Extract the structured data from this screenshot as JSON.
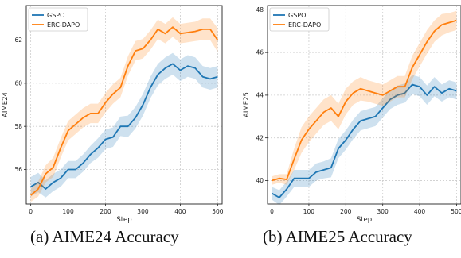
{
  "captions": [
    "(a) AIME24 Accuracy",
    "(b) AIME25 Accuracy"
  ],
  "colors": {
    "GSPO": "#1f77b4",
    "ERC-DAPO": "#ff7f0e",
    "grid": "#cccccc",
    "axis": "#222222"
  },
  "chart_data": [
    {
      "type": "line",
      "xlabel": "Step",
      "ylabel": "AIME24",
      "xlim": [
        -12,
        512
      ],
      "ylim": [
        54.4,
        63.6
      ],
      "xticks": [
        0,
        100,
        200,
        300,
        400,
        500
      ],
      "yticks": [
        56,
        58,
        60,
        62
      ],
      "grid": true,
      "legend": "top-left",
      "series": [
        {
          "name": "GSPO",
          "x": [
            0,
            20,
            40,
            60,
            80,
            100,
            120,
            140,
            160,
            180,
            200,
            220,
            240,
            260,
            280,
            300,
            320,
            340,
            360,
            380,
            400,
            420,
            440,
            460,
            480,
            500
          ],
          "values": [
            55.2,
            55.4,
            55.1,
            55.4,
            55.6,
            56.0,
            56.0,
            56.3,
            56.7,
            57.0,
            57.4,
            57.5,
            58.0,
            58.0,
            58.4,
            59.0,
            59.8,
            60.4,
            60.7,
            60.9,
            60.6,
            60.8,
            60.7,
            60.3,
            60.2,
            60.3
          ],
          "band": [
            0.45,
            0.45,
            0.4,
            0.4,
            0.4,
            0.4,
            0.4,
            0.4,
            0.4,
            0.45,
            0.45,
            0.45,
            0.45,
            0.5,
            0.5,
            0.5,
            0.5,
            0.5,
            0.5,
            0.5,
            0.5,
            0.5,
            0.5,
            0.5,
            0.5,
            0.5
          ]
        },
        {
          "name": "ERC-DAPO",
          "x": [
            0,
            20,
            40,
            60,
            80,
            100,
            120,
            140,
            160,
            180,
            200,
            220,
            240,
            260,
            280,
            300,
            320,
            340,
            360,
            380,
            400,
            420,
            440,
            460,
            480,
            500
          ],
          "values": [
            54.8,
            55.1,
            55.8,
            56.1,
            57.0,
            57.8,
            58.1,
            58.4,
            58.6,
            58.6,
            59.1,
            59.5,
            59.8,
            60.8,
            61.5,
            61.6,
            62.0,
            62.5,
            62.3,
            62.6,
            62.3,
            62.35,
            62.4,
            62.5,
            62.5,
            62.0
          ],
          "band": [
            0.3,
            0.35,
            0.4,
            0.45,
            0.45,
            0.45,
            0.45,
            0.45,
            0.45,
            0.45,
            0.45,
            0.45,
            0.45,
            0.45,
            0.45,
            0.45,
            0.45,
            0.45,
            0.45,
            0.45,
            0.45,
            0.45,
            0.45,
            0.5,
            0.5,
            0.55
          ]
        }
      ]
    },
    {
      "type": "line",
      "xlabel": "Step",
      "ylabel": "AIME25",
      "xlim": [
        -12,
        512
      ],
      "ylim": [
        38.9,
        48.2
      ],
      "xticks": [
        0,
        100,
        200,
        300,
        400,
        500
      ],
      "yticks": [
        40,
        42,
        44,
        46,
        48
      ],
      "grid": true,
      "legend": "top-left",
      "series": [
        {
          "name": "GSPO",
          "x": [
            0,
            20,
            40,
            60,
            80,
            100,
            120,
            140,
            160,
            180,
            200,
            220,
            240,
            260,
            280,
            300,
            320,
            340,
            360,
            380,
            400,
            420,
            440,
            460,
            480,
            500
          ],
          "values": [
            39.4,
            39.2,
            39.6,
            40.1,
            40.1,
            40.1,
            40.4,
            40.5,
            40.6,
            41.5,
            41.9,
            42.4,
            42.8,
            42.9,
            43.0,
            43.4,
            43.8,
            44.0,
            44.1,
            44.5,
            44.4,
            44.0,
            44.4,
            44.1,
            44.3,
            44.2
          ],
          "band": [
            0.3,
            0.35,
            0.35,
            0.4,
            0.4,
            0.4,
            0.4,
            0.4,
            0.45,
            0.45,
            0.45,
            0.45,
            0.45,
            0.45,
            0.45,
            0.45,
            0.45,
            0.45,
            0.45,
            0.45,
            0.45,
            0.45,
            0.45,
            0.4,
            0.4,
            0.4
          ]
        },
        {
          "name": "ERC-DAPO",
          "x": [
            0,
            20,
            40,
            60,
            80,
            100,
            120,
            140,
            160,
            180,
            200,
            220,
            240,
            260,
            280,
            300,
            320,
            340,
            360,
            380,
            400,
            420,
            440,
            460,
            480,
            500
          ],
          "values": [
            40.0,
            40.1,
            40.05,
            41.0,
            41.9,
            42.4,
            42.8,
            43.2,
            43.4,
            43.0,
            43.7,
            44.1,
            44.3,
            44.2,
            44.1,
            44.0,
            44.2,
            44.4,
            44.4,
            45.3,
            45.9,
            46.5,
            47.0,
            47.3,
            47.4,
            47.5
          ],
          "band": [
            0.2,
            0.2,
            0.25,
            0.5,
            0.6,
            0.6,
            0.6,
            0.6,
            0.6,
            0.6,
            0.6,
            0.55,
            0.55,
            0.5,
            0.5,
            0.5,
            0.5,
            0.5,
            0.5,
            0.55,
            0.55,
            0.55,
            0.5,
            0.5,
            0.45,
            0.45
          ]
        }
      ]
    }
  ]
}
